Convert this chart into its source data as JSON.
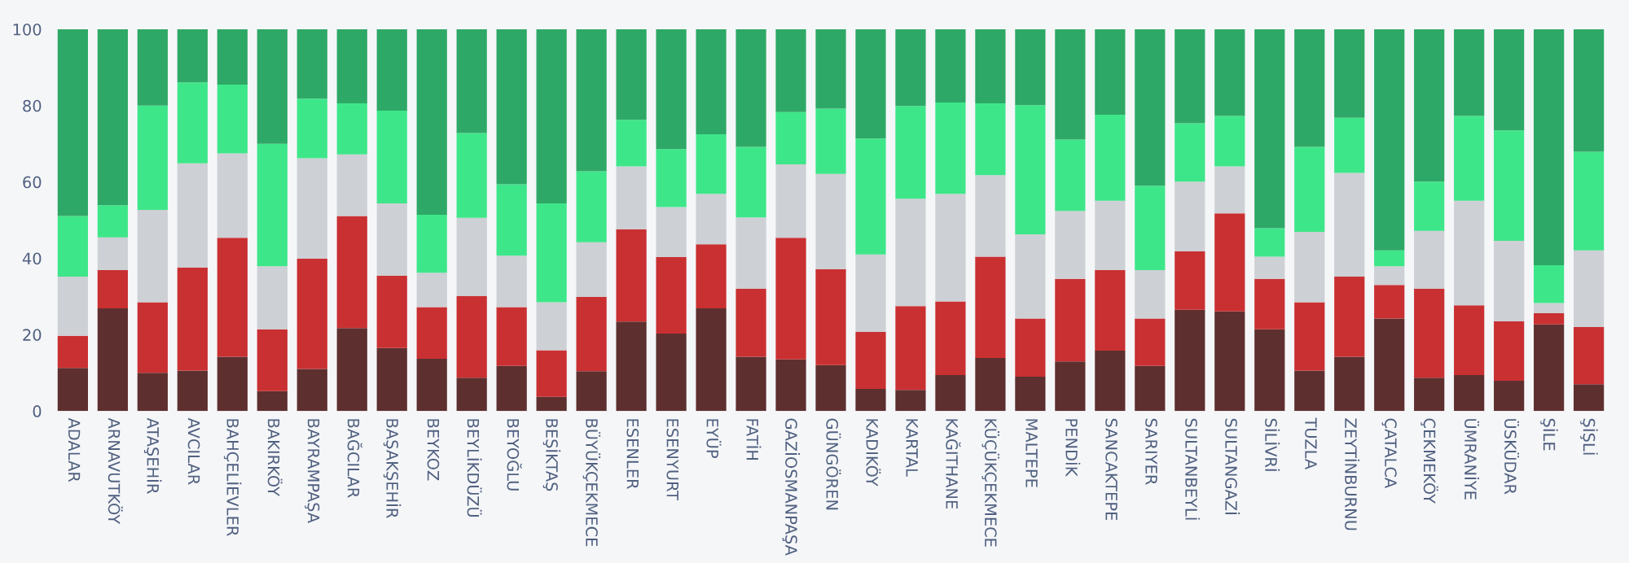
{
  "chart_data": {
    "type": "bar",
    "stacked": true,
    "categories": [
      "ADALAR",
      "ARNAVUTKÖY",
      "ATAŞEHİR",
      "AVCILAR",
      "BAHÇELİEVLER",
      "BAKIRKÖY",
      "BAYRAMPAŞA",
      "BAĞCILAR",
      "BAŞAKŞEHİR",
      "BEYKOZ",
      "BEYLİKDÜZÜ",
      "BEYOĞLU",
      "BEŞİKTAŞ",
      "BÜYÜKÇEKMECE",
      "ESENLER",
      "ESENYURT",
      "EYÜP",
      "FATİH",
      "GAZİOSMANPAŞA",
      "GÜNGÖREN",
      "KADIKÖY",
      "KARTAL",
      "KAĞITHANE",
      "KÜÇÜKÇEKMECE",
      "MALTEPE",
      "PENDİK",
      "SANCAKTEPE",
      "SARIYER",
      "SULTANBEYLİ",
      "SULTANGAZİ",
      "SİLİVRİ",
      "TUZLA",
      "ZEYTİNBURNU",
      "ÇATALCA",
      "ÇEKMEKÖY",
      "ÜMRANİYE",
      "ÜSKÜDAR",
      "ŞİLE",
      "ŞİŞLİ"
    ],
    "series": [
      {
        "color": "#5e2f2f",
        "values": [
          11.3,
          26.9,
          10.0,
          10.6,
          14.2,
          5.2,
          11.0,
          21.7,
          16.5,
          13.7,
          8.7,
          11.8,
          3.7,
          10.4,
          23.4,
          20.3,
          26.9,
          14.2,
          13.5,
          12.0,
          5.8,
          5.5,
          9.4,
          13.9,
          9.0,
          13.0,
          15.8,
          11.8,
          26.5,
          26.1,
          21.4,
          10.6,
          14.2,
          24.2,
          8.7,
          9.4,
          7.9,
          22.7,
          7.0
        ]
      },
      {
        "color": "#c93032",
        "values": [
          8.4,
          10.0,
          18.5,
          27.0,
          31.2,
          16.2,
          28.9,
          29.4,
          18.9,
          13.5,
          21.4,
          15.4,
          12.2,
          19.5,
          24.2,
          20.0,
          16.8,
          17.8,
          31.9,
          25.2,
          14.9,
          22.0,
          19.3,
          26.5,
          15.2,
          21.6,
          21.1,
          12.4,
          15.3,
          25.7,
          13.2,
          17.9,
          21.0,
          8.8,
          23.3,
          18.3,
          15.6,
          2.9,
          15.0
        ]
      },
      {
        "color": "#cdd0d4",
        "values": [
          15.5,
          8.6,
          24.2,
          27.3,
          22.1,
          16.5,
          26.3,
          16.1,
          19.0,
          9.0,
          20.5,
          13.5,
          12.6,
          14.3,
          16.5,
          13.1,
          13.2,
          18.7,
          19.2,
          24.9,
          20.3,
          28.1,
          28.2,
          21.4,
          22.1,
          17.8,
          18.2,
          12.7,
          18.3,
          12.3,
          5.8,
          18.4,
          27.2,
          4.9,
          15.2,
          27.4,
          21.1,
          2.7,
          20.1
        ]
      },
      {
        "color": "#3ee68a",
        "values": [
          15.9,
          8.4,
          27.3,
          21.2,
          18.0,
          32.1,
          15.6,
          13.4,
          24.3,
          15.2,
          22.2,
          18.7,
          25.9,
          18.6,
          12.2,
          15.2,
          15.6,
          18.5,
          13.7,
          17.1,
          30.4,
          24.3,
          23.9,
          18.8,
          33.8,
          18.7,
          22.5,
          22.1,
          15.3,
          13.2,
          7.5,
          22.3,
          14.4,
          4.2,
          12.9,
          22.2,
          28.9,
          9.9,
          25.8
        ]
      },
      {
        "color": "#2ea866",
        "values": [
          48.9,
          46.1,
          20.0,
          13.9,
          14.5,
          30.0,
          18.2,
          19.4,
          21.3,
          48.6,
          27.2,
          40.6,
          45.6,
          37.2,
          23.7,
          31.4,
          27.5,
          30.8,
          21.7,
          20.8,
          28.6,
          20.1,
          19.2,
          19.4,
          19.9,
          28.9,
          22.4,
          41.0,
          24.6,
          22.7,
          52.1,
          30.8,
          23.2,
          57.9,
          39.9,
          22.7,
          26.5,
          61.8,
          32.1
        ]
      }
    ],
    "ylim": [
      0,
      100
    ],
    "yticks": [
      0,
      20,
      40,
      60,
      80,
      100
    ],
    "grid": false,
    "legend": false
  }
}
